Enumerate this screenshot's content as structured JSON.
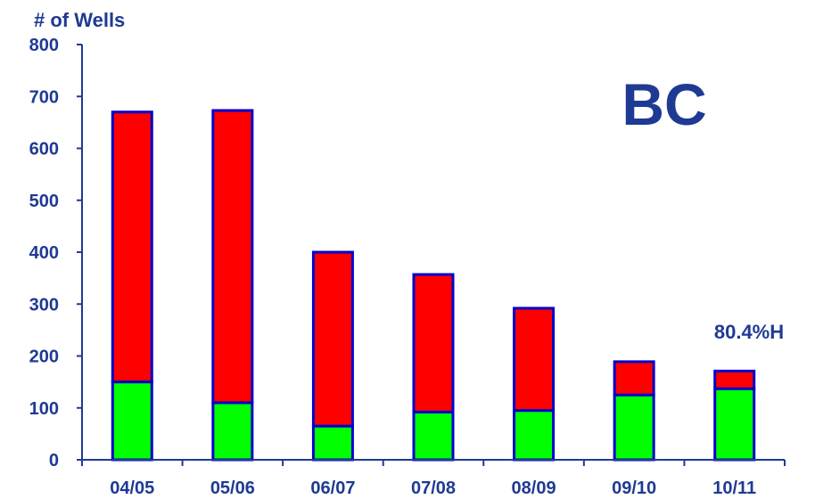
{
  "chart_data": {
    "type": "bar",
    "stacked": true,
    "title": "",
    "ylabel": "# of Wells",
    "xlabel": "",
    "ylim": [
      0,
      800
    ],
    "yticks": [
      0,
      100,
      200,
      300,
      400,
      500,
      600,
      700,
      800
    ],
    "categories": [
      "04/05",
      "05/06",
      "06/07",
      "07/08",
      "08/09",
      "09/10",
      "10/11"
    ],
    "series": [
      {
        "color": "#00ff00",
        "values": [
          150,
          110,
          65,
          92,
          95,
          125,
          137
        ]
      },
      {
        "color": "#ff0000",
        "values": [
          520,
          563,
          335,
          265,
          197,
          64,
          34
        ]
      }
    ],
    "annotations": [
      {
        "text": "BC"
      },
      {
        "text": "80.4%H",
        "category": "10/11",
        "y": 250
      }
    ],
    "grid": false,
    "colors": {
      "axis": "#1f3a93",
      "text": "#1f3a93",
      "bar_outline": "#0000cc"
    }
  }
}
